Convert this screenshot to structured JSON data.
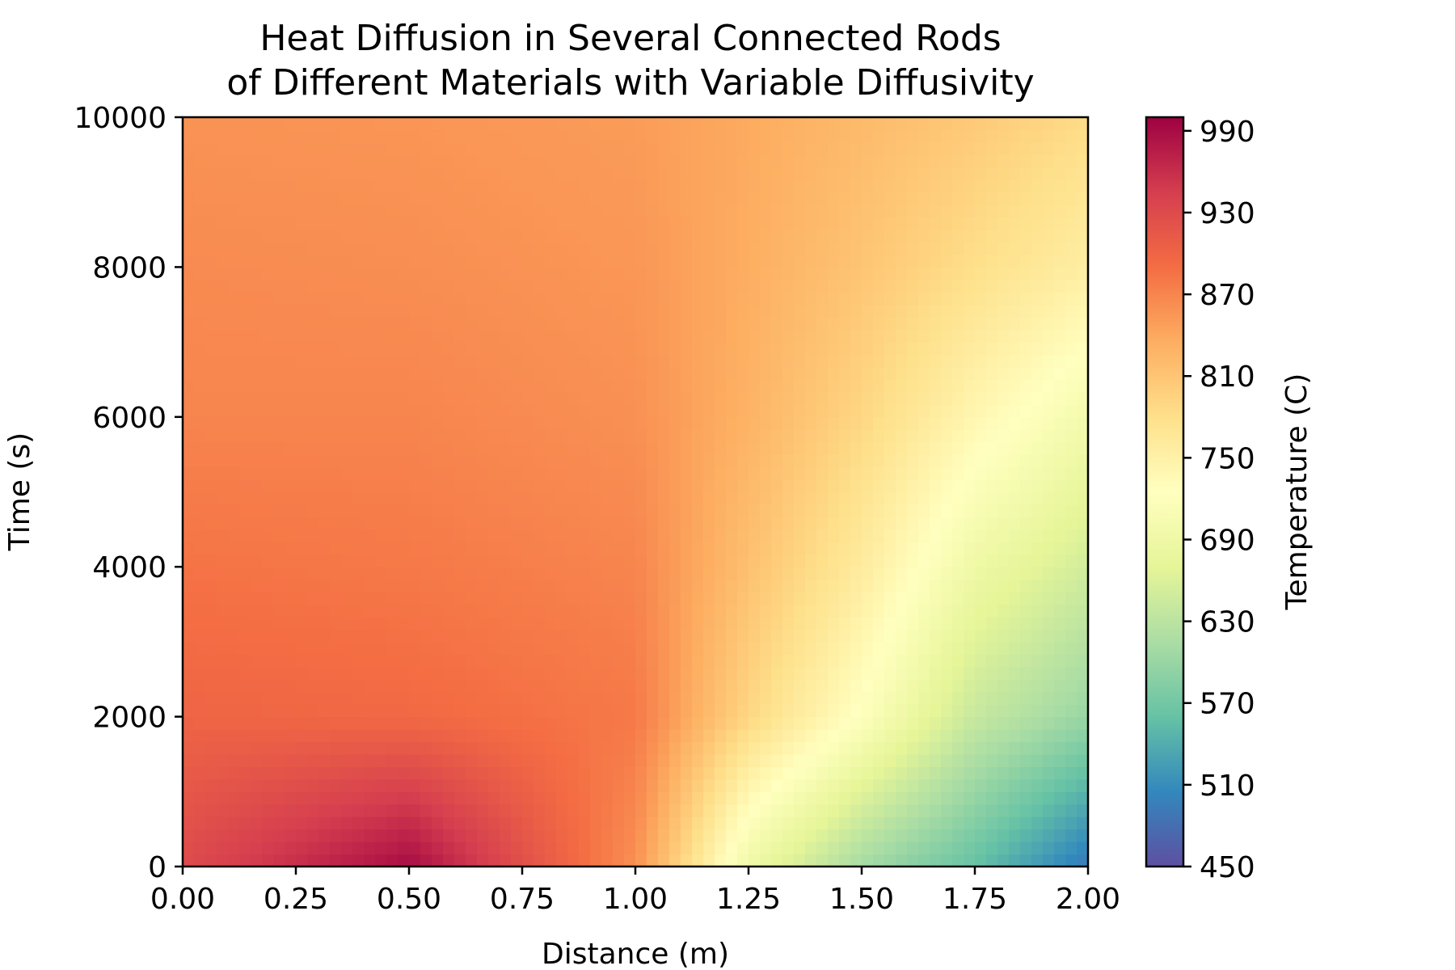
{
  "chart_data": {
    "type": "heatmap",
    "title": "Heat Diffusion in Several Connected Rods\nof Different Materials with Variable Diffusivity",
    "title_lines": [
      "Heat Diffusion in Several Connected Rods",
      "of Different Materials with Variable Diffusivity"
    ],
    "xlabel": "Distance (m)",
    "ylabel": "Time (s)",
    "xlim": [
      0,
      2
    ],
    "ylim": [
      0,
      10000
    ],
    "x_ticks": [
      0,
      0.25,
      0.5,
      0.75,
      1.0,
      1.25,
      1.5,
      1.75,
      2.0
    ],
    "x_tick_labels": [
      "0.00",
      "0.25",
      "0.50",
      "0.75",
      "1.00",
      "1.25",
      "1.50",
      "1.75",
      "2.00"
    ],
    "y_ticks": [
      0,
      2000,
      4000,
      6000,
      8000,
      10000
    ],
    "y_tick_labels": [
      "0",
      "2000",
      "4000",
      "6000",
      "8000",
      "10000"
    ],
    "colorbar": {
      "label": "Temperature (C)",
      "min": 450,
      "max": 1000,
      "ticks": [
        450,
        510,
        570,
        630,
        690,
        750,
        810,
        870,
        930,
        990
      ],
      "tick_labels": [
        "450",
        "510",
        "570",
        "630",
        "690",
        "750",
        "810",
        "870",
        "930",
        "990"
      ],
      "colormap": "Spectral_r"
    },
    "grid": false,
    "sampled_temperature_field": {
      "x": [
        0.0,
        0.5,
        1.0,
        1.25,
        1.5,
        1.75,
        2.0
      ],
      "t": [
        0,
        2000,
        4000,
        6000,
        8000,
        10000
      ],
      "values_C": [
        [
          930,
          990,
          860,
          690,
          610,
          560,
          490
        ],
        [
          900,
          895,
          880,
          790,
          720,
          640,
          600
        ],
        [
          885,
          880,
          870,
          815,
          760,
          690,
          650
        ],
        [
          870,
          870,
          860,
          830,
          790,
          740,
          700
        ],
        [
          865,
          862,
          855,
          835,
          810,
          780,
          755
        ],
        [
          858,
          856,
          850,
          838,
          822,
          805,
          785
        ]
      ]
    }
  }
}
